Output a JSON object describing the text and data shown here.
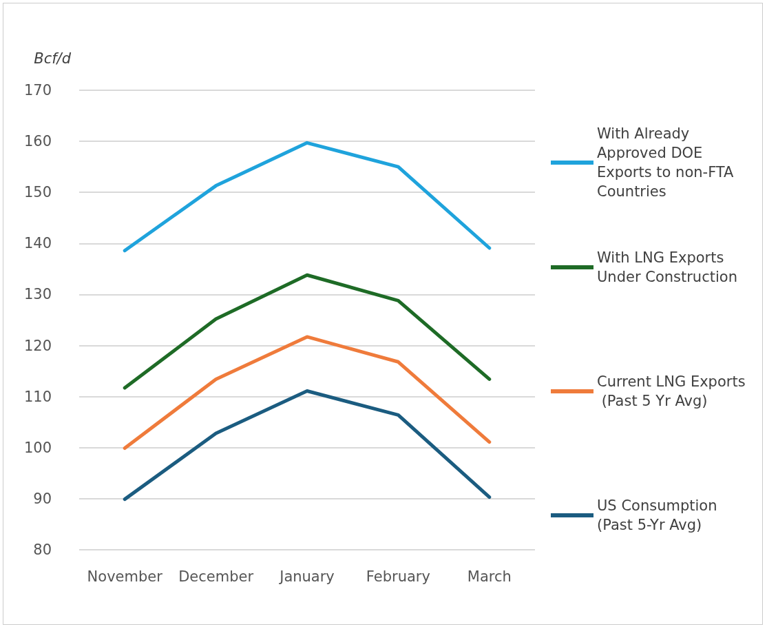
{
  "chart_data": {
    "type": "line",
    "ylabel": "Bcf/d",
    "categories": [
      "November",
      "December",
      "January",
      "February",
      "March"
    ],
    "series": [
      {
        "name": "With Already Approved DOE Exports to non-FTA Countries",
        "color": "#1fa3dc",
        "values": [
          138.6,
          151.3,
          159.7,
          155,
          139.1
        ]
      },
      {
        "name": "With LNG Exports Under Construction",
        "color": "#1e6b26",
        "values": [
          111.7,
          125.2,
          133.8,
          128.8,
          113.4
        ]
      },
      {
        "name": "Current LNG Exports (Past 5 Yr Avg)",
        "color": "#ef7b3b",
        "values": [
          99.9,
          113.4,
          121.7,
          116.8,
          101.1
        ]
      },
      {
        "name": "US Consumption (Past 5-Yr Avg)",
        "color": "#1b5c80",
        "values": [
          89.9,
          102.8,
          111.1,
          106.4,
          90.3
        ]
      }
    ],
    "ylim": [
      80,
      170
    ],
    "yticks": [
      80,
      90,
      100,
      110,
      120,
      130,
      140,
      150,
      160,
      170
    ],
    "grid": "y",
    "legend": "right",
    "marker": "none",
    "line_style": "solid"
  }
}
